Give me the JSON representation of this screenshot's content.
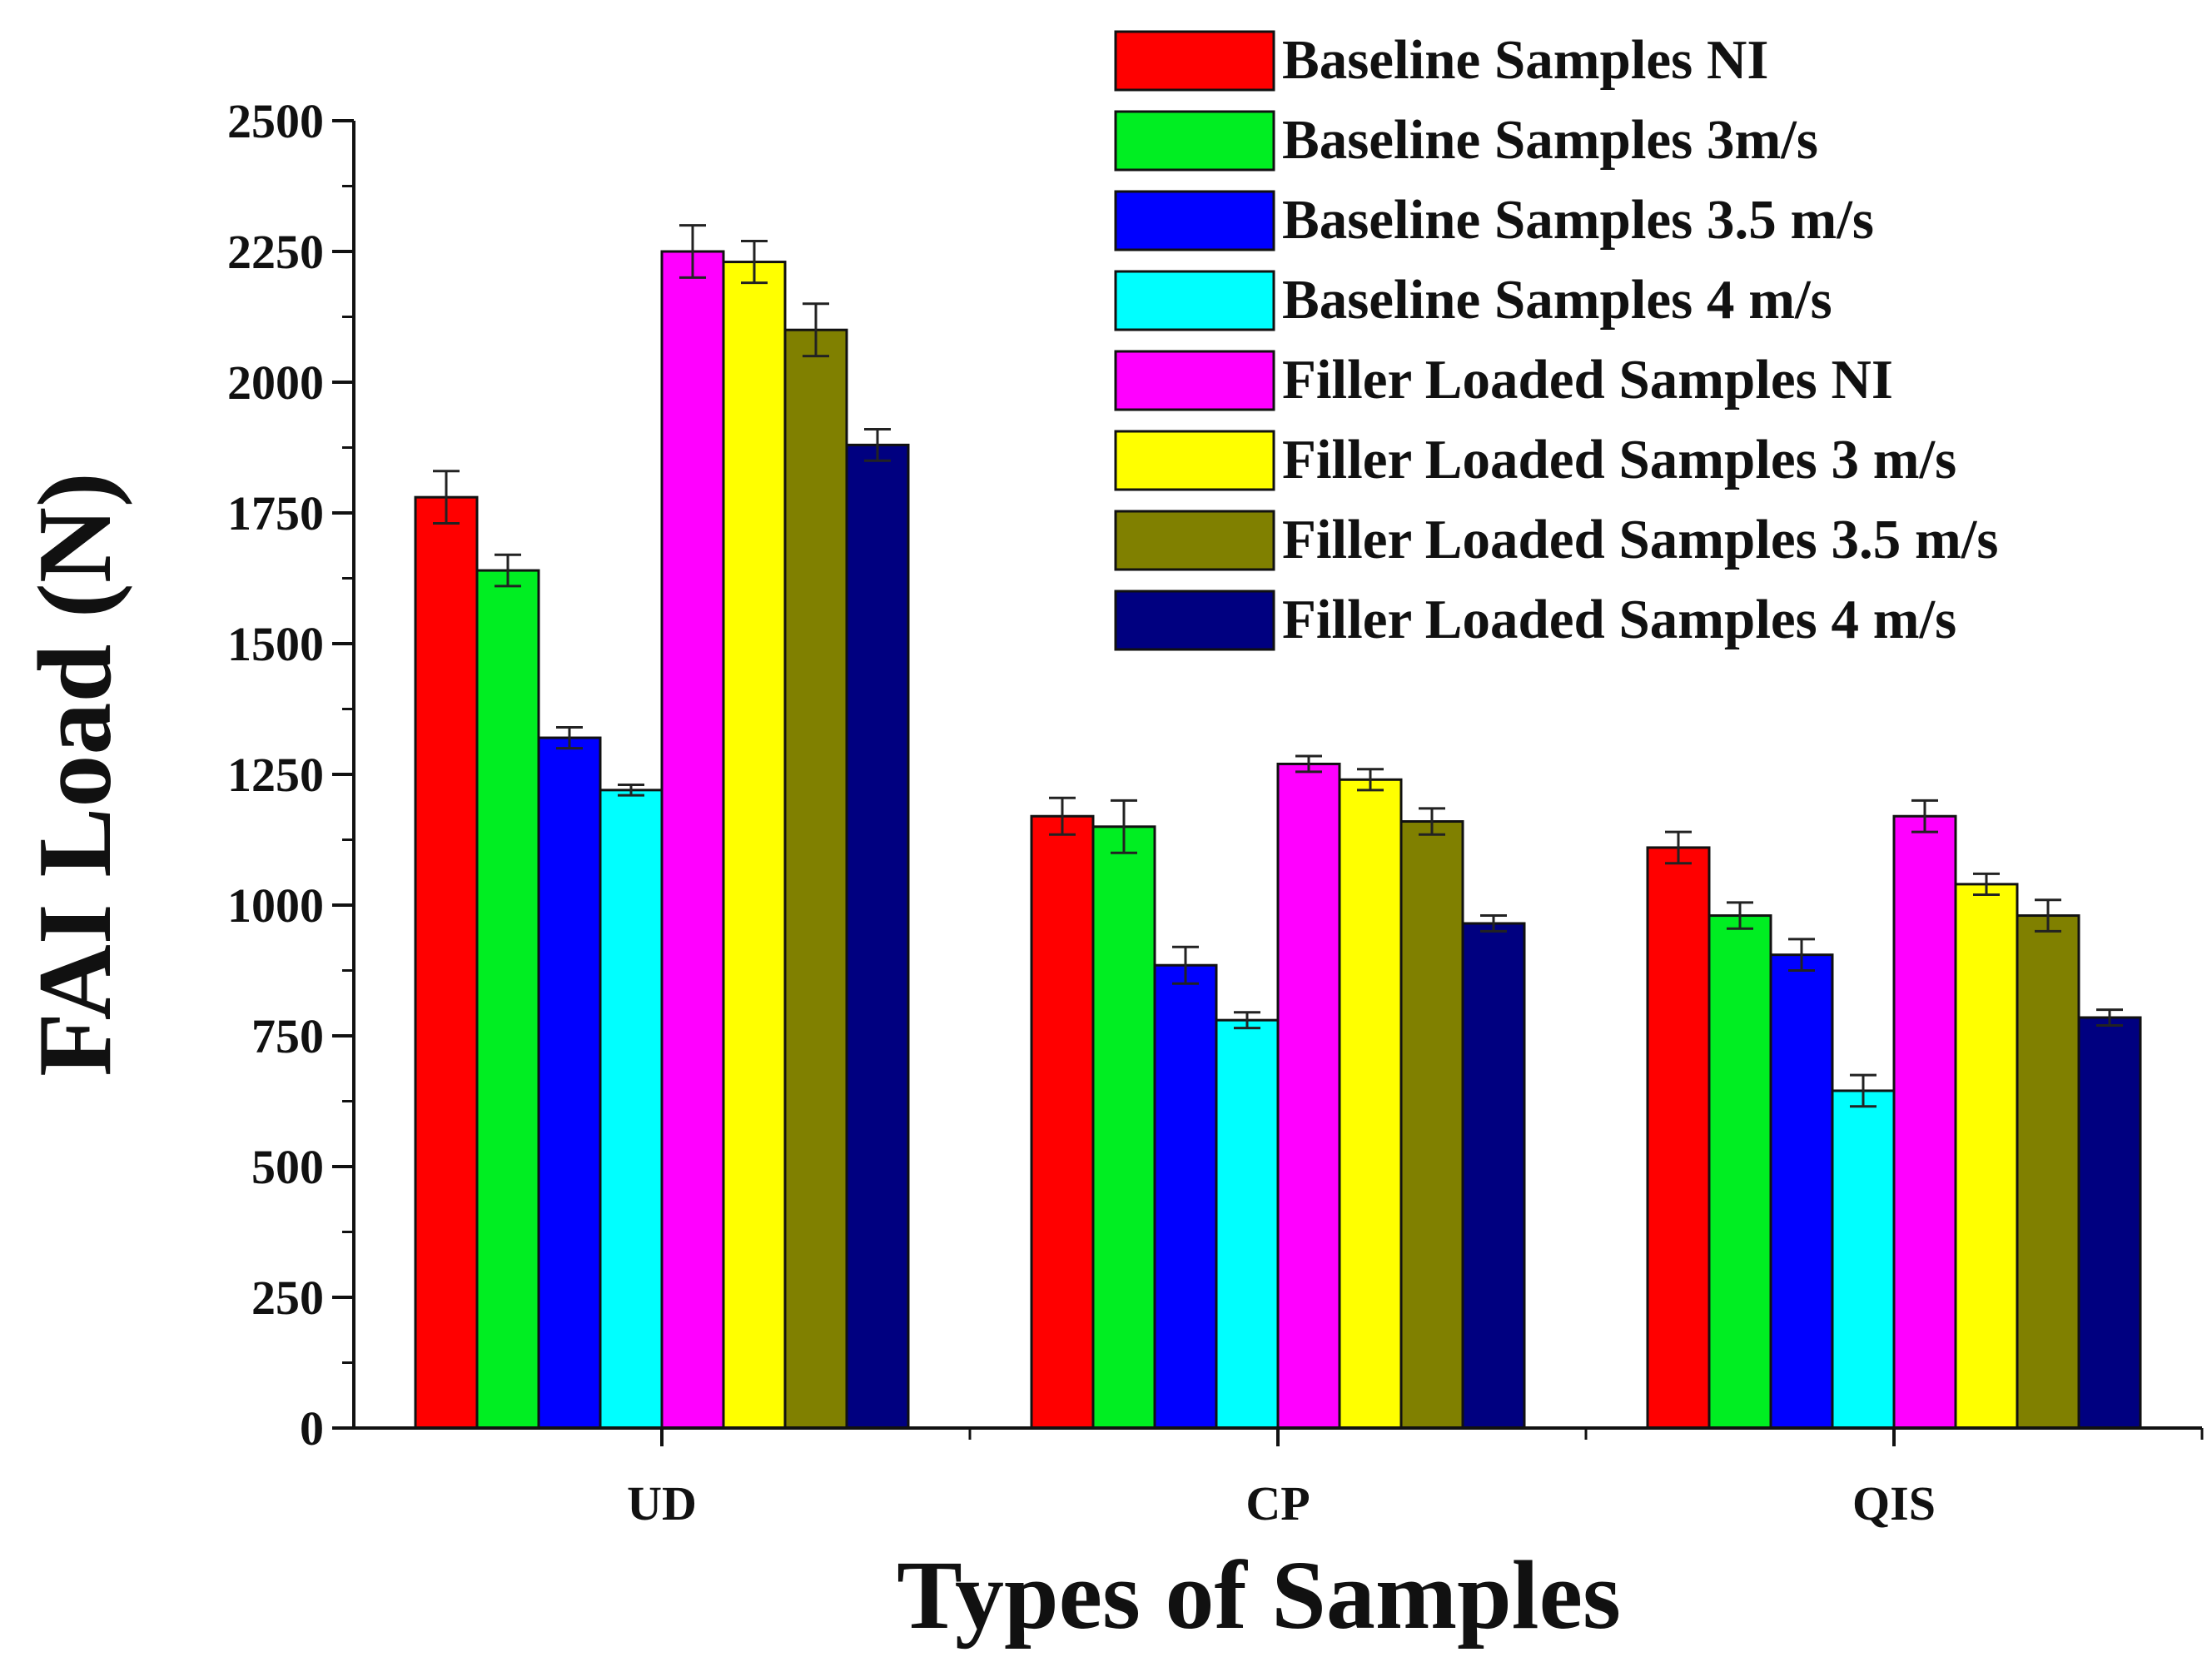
{
  "chart_data": {
    "type": "bar",
    "title": "",
    "xlabel": "Types of Samples",
    "ylabel": "FAI Load (N)",
    "categories": [
      "UD",
      "CP",
      "QIS"
    ],
    "ylim": [
      0,
      2500
    ],
    "yticks": [
      "0",
      "250",
      "500",
      "750",
      "1000",
      "1250",
      "1500",
      "1750",
      "2000",
      "2250",
      "2500"
    ],
    "grid": false,
    "legend_position": "top-right",
    "series": [
      {
        "name": "Baseline Samples NI",
        "color": "#ff0000",
        "values": [
          1780,
          1170,
          1110
        ],
        "errors": [
          50,
          35,
          30
        ]
      },
      {
        "name": "Baseline Samples 3m/s",
        "color": "#00ee22",
        "values": [
          1640,
          1150,
          980
        ],
        "errors": [
          30,
          50,
          25
        ]
      },
      {
        "name": "Baseline Samples 3.5 m/s",
        "color": "#0000ff",
        "values": [
          1320,
          885,
          905
        ],
        "errors": [
          20,
          35,
          30
        ]
      },
      {
        "name": "Baseline Samples 4 m/s",
        "color": "#00ffff",
        "values": [
          1220,
          780,
          645
        ],
        "errors": [
          10,
          15,
          30
        ]
      },
      {
        "name": "Filler Loaded Samples NI",
        "color": "#ff00ff",
        "values": [
          2250,
          1270,
          1170
        ],
        "errors": [
          50,
          15,
          30
        ]
      },
      {
        "name": "Filler Loaded Samples 3 m/s",
        "color": "#ffff00",
        "values": [
          2230,
          1240,
          1040
        ],
        "errors": [
          40,
          20,
          20
        ]
      },
      {
        "name": "Filler Loaded Samples 3.5 m/s",
        "color": "#808000",
        "values": [
          2100,
          1160,
          980
        ],
        "errors": [
          50,
          25,
          30
        ]
      },
      {
        "name": "Filler Loaded Samples 4 m/s",
        "color": "#000080",
        "values": [
          1880,
          965,
          785
        ],
        "errors": [
          30,
          15,
          15
        ]
      }
    ]
  }
}
